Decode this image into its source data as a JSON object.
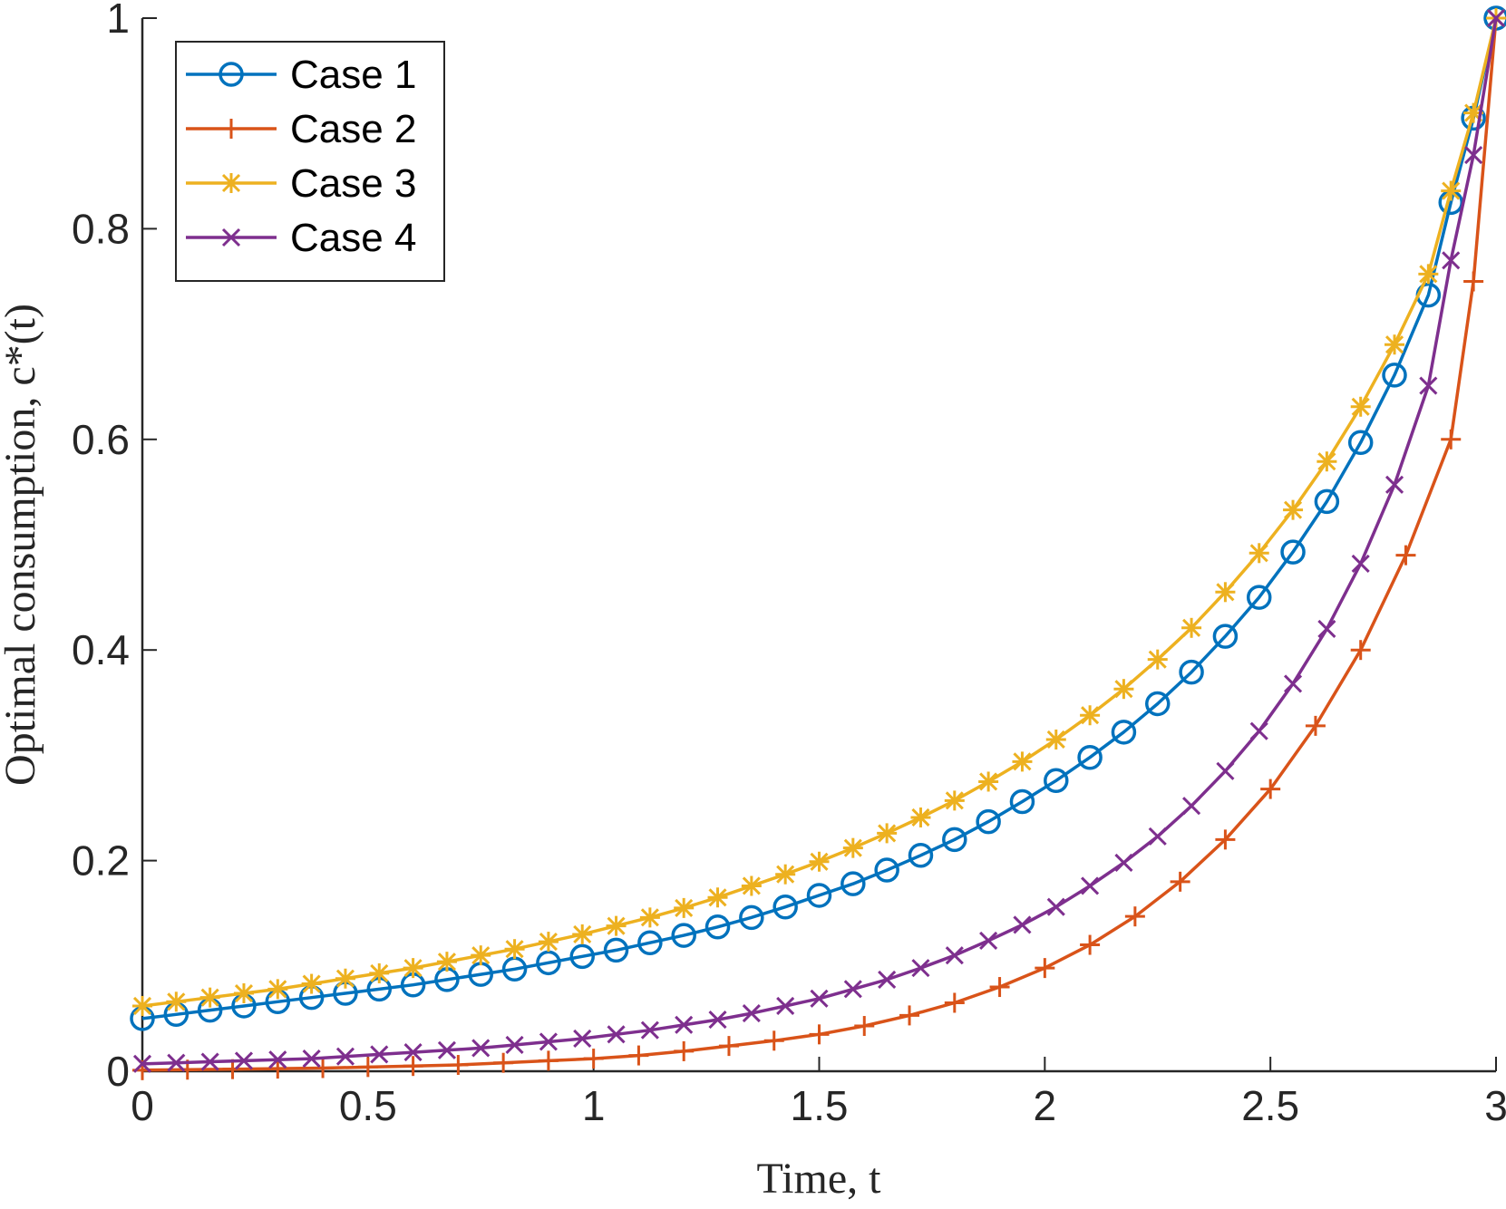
{
  "chart_data": {
    "type": "line",
    "title": "",
    "xlabel": "Time, t",
    "ylabel": "Optimal consumption, c*(t)",
    "xlim": [
      0,
      3
    ],
    "ylim": [
      0,
      1
    ],
    "x_ticks": [
      "0",
      "0.5",
      "1",
      "1.5",
      "2",
      "2.5",
      "3"
    ],
    "y_ticks": [
      "0",
      "0.2",
      "0.4",
      "0.6",
      "0.8",
      "1"
    ],
    "grid": false,
    "legend_position": "top-left",
    "colors": {
      "case1": "#0072BD",
      "case2": "#D95319",
      "case3": "#EDB120",
      "case4": "#7E2F8E",
      "axis": "#262626"
    },
    "series": [
      {
        "name": "Case 1",
        "marker": "o",
        "color": "#0072BD",
        "x": [
          0,
          0.075,
          0.15,
          0.225,
          0.3,
          0.375,
          0.45,
          0.525,
          0.6,
          0.675,
          0.75,
          0.825,
          0.9,
          0.975,
          1.05,
          1.125,
          1.2,
          1.275,
          1.35,
          1.425,
          1.5,
          1.575,
          1.65,
          1.725,
          1.8,
          1.875,
          1.95,
          2.025,
          2.1,
          2.175,
          2.25,
          2.325,
          2.4,
          2.475,
          2.55,
          2.625,
          2.7,
          2.775,
          2.85,
          2.9,
          2.95,
          3.0
        ],
        "y": [
          0.05,
          0.054,
          0.058,
          0.062,
          0.066,
          0.07,
          0.074,
          0.078,
          0.082,
          0.087,
          0.092,
          0.097,
          0.103,
          0.109,
          0.115,
          0.122,
          0.129,
          0.137,
          0.146,
          0.156,
          0.167,
          0.178,
          0.191,
          0.205,
          0.22,
          0.237,
          0.256,
          0.276,
          0.298,
          0.322,
          0.349,
          0.379,
          0.413,
          0.45,
          0.493,
          0.541,
          0.597,
          0.661,
          0.737,
          0.825,
          0.905,
          1.0
        ]
      },
      {
        "name": "Case 2",
        "marker": "+",
        "color": "#D95319",
        "x": [
          0,
          0.1,
          0.2,
          0.3,
          0.4,
          0.5,
          0.6,
          0.7,
          0.8,
          0.9,
          1.0,
          1.1,
          1.2,
          1.3,
          1.4,
          1.5,
          1.6,
          1.7,
          1.8,
          1.9,
          2.0,
          2.1,
          2.2,
          2.3,
          2.4,
          2.5,
          2.6,
          2.7,
          2.8,
          2.9,
          2.95,
          3.0
        ],
        "y": [
          0.001,
          0.0015,
          0.002,
          0.0025,
          0.003,
          0.004,
          0.005,
          0.006,
          0.008,
          0.01,
          0.012,
          0.015,
          0.019,
          0.024,
          0.029,
          0.035,
          0.043,
          0.053,
          0.065,
          0.08,
          0.098,
          0.12,
          0.147,
          0.18,
          0.22,
          0.268,
          0.328,
          0.4,
          0.49,
          0.6,
          0.75,
          1.0
        ]
      },
      {
        "name": "Case 3",
        "marker": "*",
        "color": "#EDB120",
        "x": [
          0,
          0.075,
          0.15,
          0.225,
          0.3,
          0.375,
          0.45,
          0.525,
          0.6,
          0.675,
          0.75,
          0.825,
          0.9,
          0.975,
          1.05,
          1.125,
          1.2,
          1.275,
          1.35,
          1.425,
          1.5,
          1.575,
          1.65,
          1.725,
          1.8,
          1.875,
          1.95,
          2.025,
          2.1,
          2.175,
          2.25,
          2.325,
          2.4,
          2.475,
          2.55,
          2.625,
          2.7,
          2.775,
          2.85,
          2.9,
          2.95,
          3.0
        ],
        "y": [
          0.062,
          0.066,
          0.07,
          0.074,
          0.078,
          0.083,
          0.088,
          0.093,
          0.098,
          0.104,
          0.11,
          0.116,
          0.123,
          0.13,
          0.138,
          0.146,
          0.155,
          0.165,
          0.176,
          0.187,
          0.199,
          0.212,
          0.226,
          0.241,
          0.257,
          0.275,
          0.294,
          0.315,
          0.338,
          0.363,
          0.391,
          0.421,
          0.455,
          0.492,
          0.533,
          0.579,
          0.631,
          0.69,
          0.757,
          0.836,
          0.91,
          1.0
        ]
      },
      {
        "name": "Case 4",
        "marker": "x",
        "color": "#7E2F8E",
        "x": [
          0,
          0.075,
          0.15,
          0.225,
          0.3,
          0.375,
          0.45,
          0.525,
          0.6,
          0.675,
          0.75,
          0.825,
          0.9,
          0.975,
          1.05,
          1.125,
          1.2,
          1.275,
          1.35,
          1.425,
          1.5,
          1.575,
          1.65,
          1.725,
          1.8,
          1.875,
          1.95,
          2.025,
          2.1,
          2.175,
          2.25,
          2.325,
          2.4,
          2.475,
          2.55,
          2.625,
          2.7,
          2.775,
          2.85,
          2.9,
          2.95,
          3.0
        ],
        "y": [
          0.007,
          0.008,
          0.009,
          0.01,
          0.011,
          0.012,
          0.014,
          0.016,
          0.018,
          0.02,
          0.022,
          0.025,
          0.028,
          0.031,
          0.035,
          0.039,
          0.044,
          0.049,
          0.055,
          0.062,
          0.069,
          0.078,
          0.087,
          0.098,
          0.11,
          0.124,
          0.139,
          0.156,
          0.176,
          0.198,
          0.223,
          0.252,
          0.285,
          0.323,
          0.368,
          0.42,
          0.482,
          0.557,
          0.651,
          0.77,
          0.87,
          1.0
        ]
      }
    ]
  }
}
